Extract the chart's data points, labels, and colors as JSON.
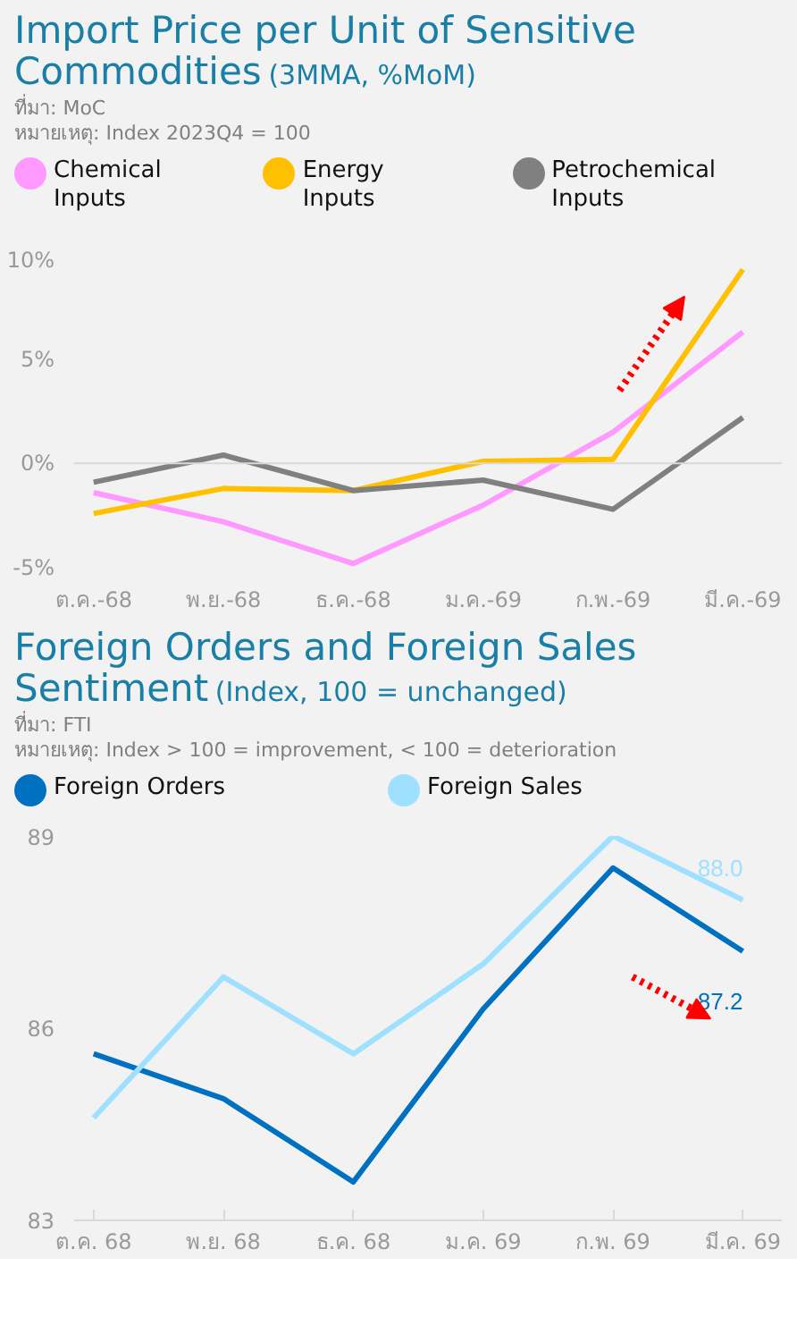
{
  "chart_data": [
    {
      "type": "line",
      "title": "Import Price per Unit of Sensitive Commodities",
      "subtitle": "(3MMA, %MoM)",
      "annotations": [
        "ที่มา: MoC",
        "หมายเหตุ:  Index 2023Q4 = 100"
      ],
      "categories": [
        "ต.ค.-68",
        "พ.ย.-68",
        "ธ.ค.-68",
        "ม.ค.-69",
        "ก.พ.-69",
        "มี.ค.-69"
      ],
      "series": [
        {
          "name": "Chemical Inputs",
          "color": "#ff99ff",
          "values": [
            -1.4,
            -2.8,
            -4.8,
            -2.0,
            1.5,
            6.3
          ]
        },
        {
          "name": "Energy Inputs",
          "color": "#ffc000",
          "values": [
            -2.4,
            -1.2,
            -1.3,
            0.1,
            0.2,
            9.3
          ]
        },
        {
          "name": "Petrochemical Inputs",
          "color": "#808080",
          "values": [
            -0.9,
            0.4,
            -1.3,
            -0.8,
            -2.2,
            2.2
          ]
        }
      ],
      "ylim": [
        -5,
        10
      ],
      "yticks": [
        {
          "value": -5,
          "label": "-5%"
        },
        {
          "value": 0,
          "label": "0%"
        },
        {
          "value": 5,
          "label": "5%"
        },
        {
          "value": 10,
          "label": "10%"
        }
      ],
      "ref_lines": [
        {
          "axis": "y",
          "value": 0,
          "color": "#d9d9d9"
        }
      ],
      "grid": false,
      "legend": "top"
    },
    {
      "type": "line",
      "title": "Foreign Orders and Foreign Sales Sentiment",
      "subtitle": "(Index, 100 = unchanged)",
      "annotations": [
        "ที่มา: FTI",
        "หมายเหตุ: Index > 100 = improvement, < 100 = deterioration"
      ],
      "categories": [
        "ต.ค. 68",
        "พ.ย. 68",
        "ธ.ค. 68",
        "ม.ค. 69",
        "ก.พ. 69",
        "มี.ค. 69"
      ],
      "series": [
        {
          "name": "Foreign Orders",
          "color": "#0070c0",
          "values": [
            85.6,
            84.9,
            83.6,
            86.3,
            88.5,
            87.2
          ],
          "value_labels": [
            null,
            null,
            null,
            null,
            null,
            "87.2"
          ]
        },
        {
          "name": "Foreign Sales",
          "color": "#9fe0ff",
          "values": [
            84.6,
            86.8,
            85.6,
            87.0,
            89.0,
            88.0
          ],
          "value_labels": [
            null,
            null,
            null,
            null,
            null,
            "88.0"
          ]
        }
      ],
      "ylim": [
        83,
        89
      ],
      "yticks": [
        83,
        86,
        89
      ],
      "grid": false,
      "legend": "top"
    }
  ]
}
